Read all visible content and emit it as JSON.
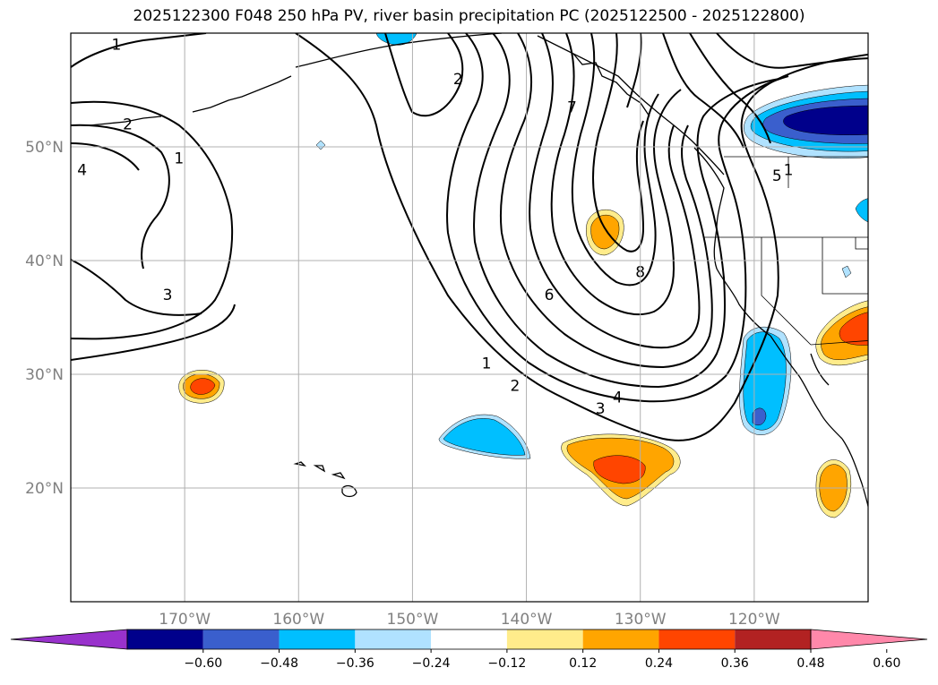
{
  "title": "2025122300 F048 250 hPa PV, river basin precipitation PC (2025122500 - 2025122800)",
  "map": {
    "lon_range": [
      -180,
      -110
    ],
    "lat_range": [
      10,
      60
    ],
    "gridlines": true
  },
  "lat_labels": [
    {
      "lat": 50,
      "text": "50°N"
    },
    {
      "lat": 40,
      "text": "40°N"
    },
    {
      "lat": 30,
      "text": "30°N"
    },
    {
      "lat": 20,
      "text": "20°N"
    }
  ],
  "lon_labels": [
    {
      "lon": -170,
      "text": "170°W"
    },
    {
      "lon": -160,
      "text": "160°W"
    },
    {
      "lon": -150,
      "text": "150°W"
    },
    {
      "lon": -140,
      "text": "140°W"
    },
    {
      "lon": -130,
      "text": "130°W"
    },
    {
      "lon": -120,
      "text": "120°W"
    }
  ],
  "contour_labels": [
    {
      "text": "1",
      "lon": -176,
      "lat": 59
    },
    {
      "text": "2",
      "lon": -175,
      "lat": 52
    },
    {
      "text": "4",
      "lon": -179,
      "lat": 48
    },
    {
      "text": "1",
      "lon": -170.5,
      "lat": 49
    },
    {
      "text": "3",
      "lon": -171.5,
      "lat": 37
    },
    {
      "text": "2",
      "lon": -146,
      "lat": 56
    },
    {
      "text": "7",
      "lon": -136,
      "lat": 53.5
    },
    {
      "text": "6",
      "lon": -138,
      "lat": 37
    },
    {
      "text": "8",
      "lon": -130,
      "lat": 39
    },
    {
      "text": "1",
      "lon": -143.5,
      "lat": 31
    },
    {
      "text": "2",
      "lon": -141,
      "lat": 29
    },
    {
      "text": "3",
      "lon": -133.5,
      "lat": 27
    },
    {
      "text": "4",
      "lon": -132,
      "lat": 28
    },
    {
      "text": "5",
      "lon": -118,
      "lat": 47.5
    },
    {
      "text": "1",
      "lon": -117,
      "lat": 48
    }
  ],
  "colorbar": {
    "ticks": [
      "−0.60",
      "−0.48",
      "−0.36",
      "−0.24",
      "−0.12",
      "0.12",
      "0.24",
      "0.36",
      "0.48",
      "0.60"
    ],
    "colors": [
      "#9932CC",
      "#00008B",
      "#3A5FCD",
      "#00BFFF",
      "#B0E2FF",
      "#FFFFFF",
      "#FFEC8B",
      "#FFA500",
      "#FF4500",
      "#B22222",
      "#FF88AA"
    ]
  },
  "shading_colors": {
    "neg_light": "#B0E2FF",
    "neg_mid": "#00BFFF",
    "neg_strong": "#3A5FCD",
    "neg_extreme": "#00008B",
    "pos_light": "#FFEC8B",
    "pos_mid": "#FFA500",
    "pos_strong": "#FF4500"
  }
}
